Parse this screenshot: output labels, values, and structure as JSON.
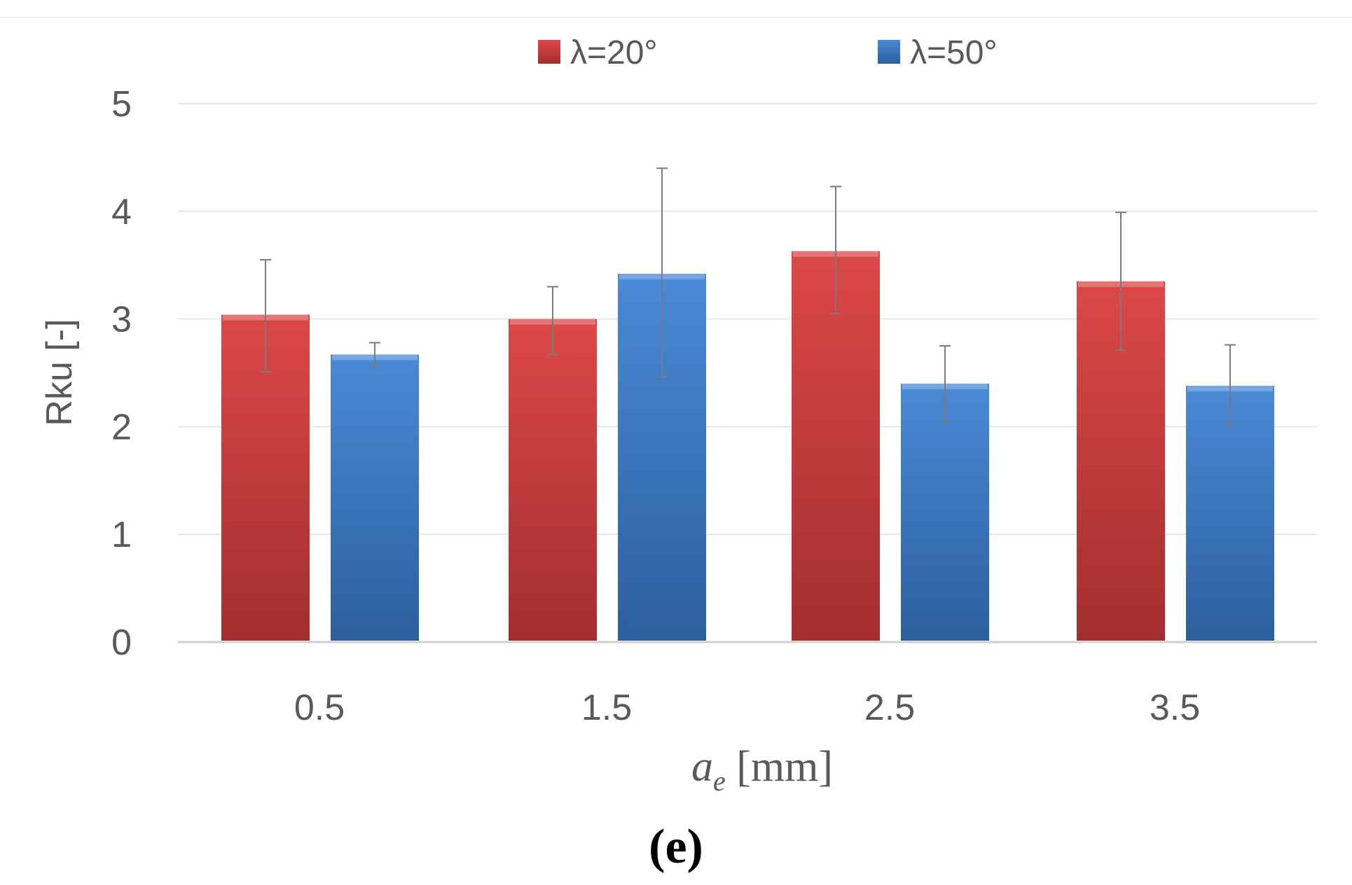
{
  "chart_data": {
    "type": "bar",
    "title": "",
    "caption": "(e)",
    "xlabel_main": "a",
    "xlabel_sub": "e",
    "xlabel_unit": " [mm]",
    "ylabel": "Rku [-]",
    "ylim": [
      0,
      5
    ],
    "yticks": [
      "0",
      "1",
      "2",
      "3",
      "4",
      "5"
    ],
    "grid": true,
    "legend_position": "top-center",
    "categories": [
      "0.5",
      "1.5",
      "2.5",
      "3.5"
    ],
    "series": [
      {
        "name": "λ=20°",
        "color": "#c0393b",
        "values": [
          3.04,
          3.0,
          3.63,
          3.35
        ],
        "err_high": [
          3.55,
          3.3,
          4.23,
          3.99
        ],
        "err_low": [
          2.51,
          2.67,
          3.05,
          2.71
        ]
      },
      {
        "name": "λ=50°",
        "color": "#3a78c2",
        "values": [
          2.67,
          3.42,
          2.4,
          2.38
        ],
        "err_high": [
          2.78,
          4.4,
          2.75,
          2.76
        ],
        "err_low": [
          2.56,
          2.46,
          2.05,
          2.01
        ]
      }
    ]
  }
}
